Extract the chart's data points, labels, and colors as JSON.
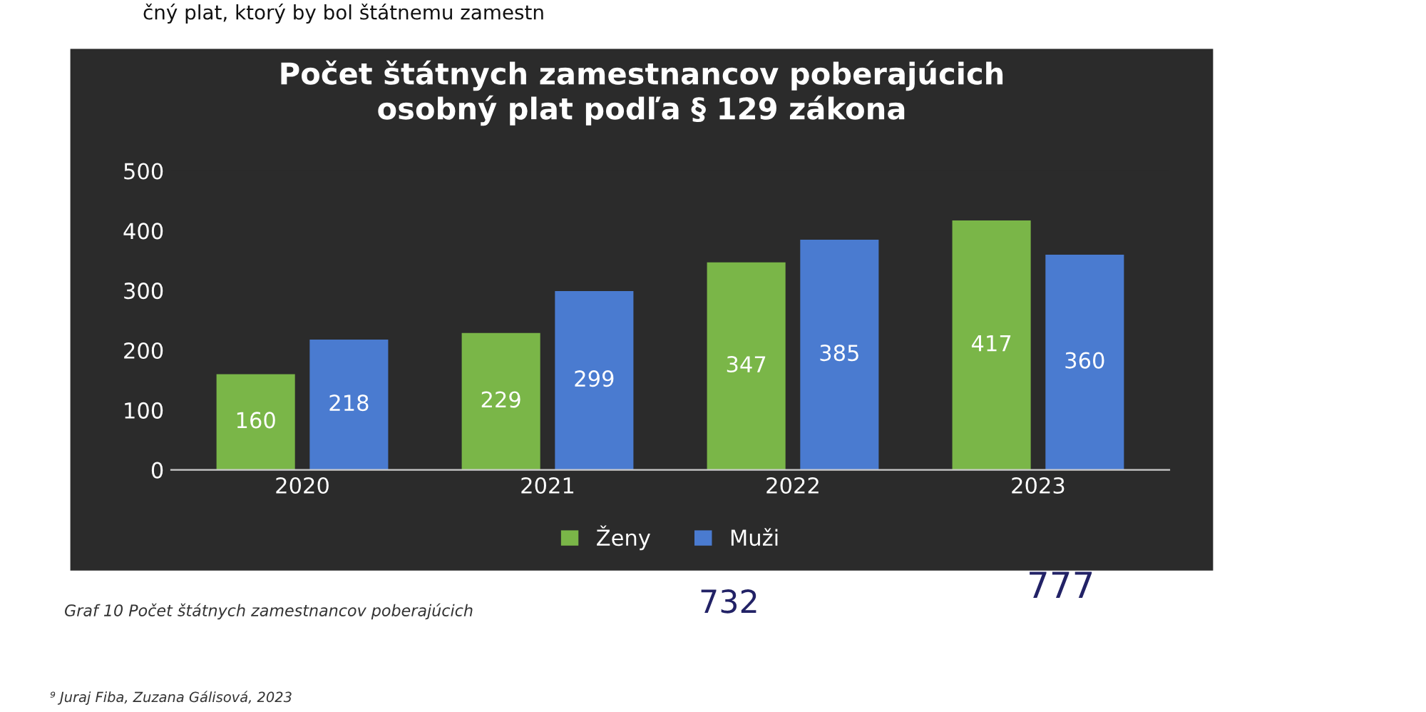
{
  "chart_data": {
    "type": "bar",
    "title": "Počet štátnych zamestnancov poberajúcich\nosobný plat podľa § 129 zákona",
    "categories": [
      "2020",
      "2021",
      "2022",
      "2023"
    ],
    "series": [
      {
        "name": "Ženy",
        "color": "#7ab648",
        "values": [
          160,
          229,
          347,
          417
        ]
      },
      {
        "name": "Muži",
        "color": "#4a7bd0",
        "values": [
          218,
          299,
          385,
          360
        ]
      }
    ],
    "ylim": [
      0,
      500
    ],
    "yticks": [
      0,
      100,
      200,
      300,
      400,
      500
    ],
    "grid": false,
    "legend": "bottom",
    "data_labels": true,
    "annotations": [
      "čný plat, ktorý by bol štátnemu zamestn",
      "Graf 10 Počet štátnych zamestnancov poberajúcich",
      "732",
      "777",
      "⁹ Juraj Fiba, Zuzana Gálisová, 2023"
    ]
  }
}
